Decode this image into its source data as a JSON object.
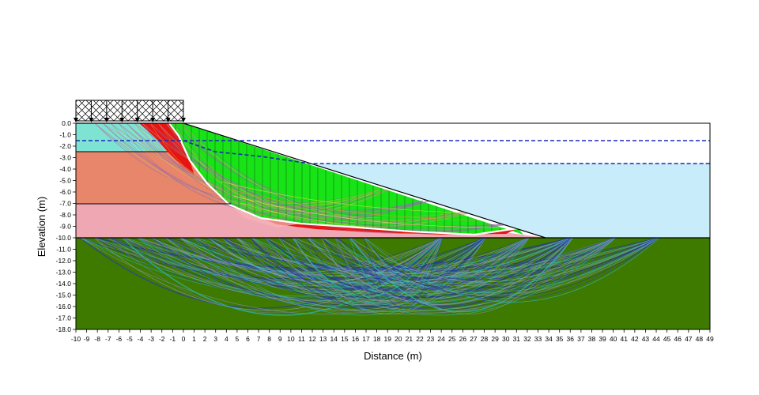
{
  "axes": {
    "xlabel": "Distance (m)",
    "ylabel": "Elevation (m)",
    "x_ticks": [
      "-10",
      "-9",
      "-8",
      "-7",
      "-6",
      "-5",
      "-4",
      "-3",
      "-2",
      "-1",
      "0",
      "1",
      "2",
      "3",
      "4",
      "5",
      "6",
      "7",
      "8",
      "9",
      "10",
      "11",
      "12",
      "13",
      "14",
      "15",
      "16",
      "17",
      "18",
      "19",
      "20",
      "21",
      "22",
      "23",
      "24",
      "25",
      "26",
      "27",
      "28",
      "29",
      "30",
      "31",
      "32",
      "33",
      "34",
      "35",
      "36",
      "37",
      "38",
      "39",
      "40",
      "41",
      "42",
      "43",
      "44",
      "45",
      "46",
      "47",
      "48",
      "49"
    ],
    "y_ticks": [
      "0.0",
      "-1.0",
      "-2.0",
      "-3.0",
      "-4.0",
      "-5.0",
      "-6.0",
      "-7.0",
      "-8.0",
      "-9.0",
      "-10.0",
      "-11.0",
      "-12.0",
      "-13.0",
      "-14.0",
      "-15.0",
      "-16.0",
      "-17.0",
      "-18.0"
    ]
  },
  "colors": {
    "bedrock": "#3e7a00",
    "water": "#c8ecf9",
    "upper_clay": "#7fe3d3",
    "fill": "#e8866b",
    "lower_soil": "#f0a7b4",
    "sliding_mass": "#17e317",
    "critical_zone": "#e8140f",
    "critical_surface": "#ffffff",
    "water_table": "#1a2ab8",
    "surcharge_hatch": "#000000"
  },
  "geometry_data": {
    "slope_crest": [
      0,
      0
    ],
    "slope_toe": [
      34,
      -10
    ],
    "bedrock_top_elevation": -10,
    "layer_boundaries": [
      -2.5,
      -7,
      -10
    ],
    "water_levels": [
      -1.5,
      -3.5
    ],
    "surcharge_extent": [
      -10,
      0
    ],
    "critical_slip_surface": [
      [
        -2,
        0
      ],
      [
        0,
        -3
      ],
      [
        2,
        -5.3
      ],
      [
        4,
        -6.8
      ],
      [
        8,
        -8.2
      ],
      [
        14,
        -9.0
      ],
      [
        22,
        -9.7
      ],
      [
        30,
        -9.8
      ],
      [
        32,
        -9.1
      ]
    ]
  }
}
